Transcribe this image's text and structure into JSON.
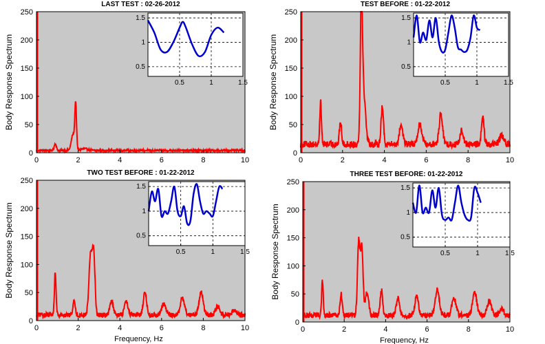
{
  "chart_data": [
    {
      "type": "line",
      "title": "LAST TEST : 02-26-2012",
      "ylabel": "Body Response Spectrum",
      "xlabel": "",
      "xlim": [
        0,
        10
      ],
      "ylim": [
        0,
        250
      ],
      "xticks": [
        "0",
        "2",
        "4",
        "6",
        "8",
        "10"
      ],
      "yticks": [
        "0",
        "50",
        "100",
        "150",
        "200",
        "250"
      ],
      "background": "#c8c8c8",
      "line_color": "#ff0000",
      "baseline": 4,
      "peaks": [
        [
          0.9,
          12,
          0.05
        ],
        [
          1.75,
          28,
          0.08
        ],
        [
          1.88,
          80,
          0.04
        ],
        [
          2.3,
          3,
          0.2
        ]
      ],
      "inset": {
        "xlim": [
          0,
          1.5
        ],
        "ylim": [
          0.3,
          1.6
        ],
        "xticks": [
          "0.5",
          "1",
          "1.5"
        ],
        "yticks": [
          "0.5",
          "1",
          "1.5"
        ],
        "line_color": "#0000cc",
        "x": [
          0.0,
          0.1,
          0.2,
          0.3,
          0.4,
          0.5,
          0.55,
          0.6,
          0.7,
          0.8,
          0.9,
          1.0,
          1.1,
          1.2
        ],
        "y": [
          1.45,
          1.2,
          0.85,
          0.8,
          1.0,
          1.3,
          1.42,
          1.3,
          0.95,
          0.72,
          0.8,
          1.15,
          1.3,
          1.2
        ]
      }
    },
    {
      "type": "line",
      "title": "TEST BEFORE : 01-22-2012",
      "ylabel": "Body Response Spectrum",
      "xlabel": "",
      "xlim": [
        0,
        10
      ],
      "ylim": [
        0,
        250
      ],
      "xticks": [
        "0",
        "2",
        "4",
        "6",
        "8",
        "10"
      ],
      "yticks": [
        "0",
        "50",
        "100",
        "150",
        "200",
        "250"
      ],
      "background": "#c8c8c8",
      "line_color": "#ff0000",
      "baseline": 15,
      "peaks": [
        [
          0.95,
          75,
          0.04
        ],
        [
          1.9,
          40,
          0.05
        ],
        [
          2.9,
          230,
          0.05
        ],
        [
          3.0,
          90,
          0.1
        ],
        [
          3.9,
          65,
          0.06
        ],
        [
          4.8,
          35,
          0.08
        ],
        [
          5.7,
          35,
          0.1
        ],
        [
          6.7,
          55,
          0.08
        ],
        [
          7.7,
          25,
          0.08
        ],
        [
          8.7,
          50,
          0.06
        ],
        [
          9.6,
          15,
          0.1
        ]
      ],
      "inset": {
        "xlim": [
          0,
          1.5
        ],
        "ylim": [
          0.3,
          1.6
        ],
        "xticks": [
          "0.5",
          "1",
          "1.5"
        ],
        "yticks": [
          "0.5",
          "1",
          "1.5"
        ],
        "line_color": "#0000cc",
        "x": [
          0.0,
          0.05,
          0.1,
          0.15,
          0.2,
          0.25,
          0.3,
          0.35,
          0.4,
          0.45,
          0.5,
          0.55,
          0.6,
          0.65,
          0.7,
          0.75,
          0.8,
          0.85,
          0.9,
          0.95,
          1.0,
          1.05
        ],
        "y": [
          1.1,
          1.55,
          1.0,
          1.2,
          1.05,
          1.45,
          1.1,
          1.5,
          1.0,
          0.8,
          0.85,
          1.2,
          1.55,
          1.3,
          0.9,
          0.85,
          0.8,
          0.85,
          1.1,
          1.55,
          1.3,
          1.25
        ]
      }
    },
    {
      "type": "line",
      "title": "TWO TEST BEFORE : 01-22-2012",
      "ylabel": "Body Response Spectrum",
      "xlabel": "Frequency, Hz",
      "xlim": [
        0,
        10
      ],
      "ylim": [
        0,
        250
      ],
      "xticks": [
        "0",
        "2",
        "4",
        "6",
        "8",
        "10"
      ],
      "yticks": [
        "0",
        "50",
        "100",
        "150",
        "200",
        "250"
      ],
      "background": "#c8c8c8",
      "line_color": "#ff0000",
      "baseline": 10,
      "peaks": [
        [
          0.9,
          75,
          0.04
        ],
        [
          1.8,
          28,
          0.05
        ],
        [
          2.6,
          110,
          0.08
        ],
        [
          2.75,
          100,
          0.06
        ],
        [
          3.6,
          25,
          0.08
        ],
        [
          4.3,
          25,
          0.08
        ],
        [
          5.2,
          40,
          0.08
        ],
        [
          6.1,
          20,
          0.1
        ],
        [
          7.0,
          30,
          0.1
        ],
        [
          7.9,
          40,
          0.1
        ],
        [
          8.7,
          15,
          0.1
        ],
        [
          9.5,
          10,
          0.1
        ]
      ],
      "inset": {
        "xlim": [
          0,
          1.5
        ],
        "ylim": [
          0.3,
          1.6
        ],
        "xticks": [
          "0.5",
          "1",
          "1.5"
        ],
        "yticks": [
          "0.5",
          "1",
          "1.5"
        ],
        "line_color": "#0000cc",
        "x": [
          0.0,
          0.05,
          0.1,
          0.15,
          0.2,
          0.25,
          0.3,
          0.35,
          0.4,
          0.45,
          0.5,
          0.55,
          0.6,
          0.65,
          0.7,
          0.75,
          0.8,
          0.85,
          0.9,
          0.95,
          1.0,
          1.05,
          1.1,
          1.15
        ],
        "y": [
          1.0,
          1.4,
          1.2,
          1.45,
          0.9,
          1.0,
          0.95,
          1.2,
          1.5,
          1.0,
          0.9,
          1.1,
          0.75,
          0.8,
          1.35,
          1.55,
          1.2,
          0.95,
          1.0,
          0.95,
          0.9,
          1.2,
          1.5,
          1.45
        ]
      }
    },
    {
      "type": "line",
      "title": "THREE TEST BEFORE:   01-22-2012",
      "ylabel": "Body Response Spectrum",
      "xlabel": "Frequency, Hz",
      "xlim": [
        0,
        10
      ],
      "ylim": [
        0,
        250
      ],
      "xticks": [
        "0",
        "2",
        "4",
        "6",
        "8",
        "10"
      ],
      "yticks": [
        "0",
        "50",
        "100",
        "150",
        "200",
        "250"
      ],
      "background": "#c8c8c8",
      "line_color": "#ff0000",
      "baseline": 12,
      "peaks": [
        [
          0.95,
          60,
          0.04
        ],
        [
          1.85,
          38,
          0.05
        ],
        [
          2.7,
          130,
          0.06
        ],
        [
          2.85,
          120,
          0.06
        ],
        [
          3.1,
          40,
          0.08
        ],
        [
          3.8,
          45,
          0.06
        ],
        [
          4.6,
          30,
          0.08
        ],
        [
          5.5,
          35,
          0.08
        ],
        [
          6.5,
          45,
          0.1
        ],
        [
          7.3,
          30,
          0.1
        ],
        [
          8.3,
          40,
          0.1
        ],
        [
          9.0,
          25,
          0.1
        ],
        [
          9.6,
          12,
          0.1
        ]
      ],
      "inset": {
        "xlim": [
          0,
          1.5
        ],
        "ylim": [
          0.3,
          1.6
        ],
        "xticks": [
          "0.5",
          "1",
          "1.5"
        ],
        "yticks": [
          "0.5",
          "1",
          "1.5"
        ],
        "line_color": "#0000cc",
        "x": [
          0.0,
          0.05,
          0.1,
          0.15,
          0.2,
          0.25,
          0.3,
          0.35,
          0.4,
          0.45,
          0.5,
          0.55,
          0.6,
          0.65,
          0.7,
          0.75,
          0.8,
          0.85,
          0.9,
          0.95,
          1.0,
          1.05
        ],
        "y": [
          1.2,
          1.0,
          1.55,
          1.0,
          1.1,
          1.0,
          1.45,
          1.1,
          1.5,
          0.95,
          0.85,
          0.9,
          0.85,
          1.2,
          1.55,
          1.2,
          0.95,
          0.85,
          0.9,
          1.5,
          1.4,
          1.2
        ]
      }
    }
  ]
}
